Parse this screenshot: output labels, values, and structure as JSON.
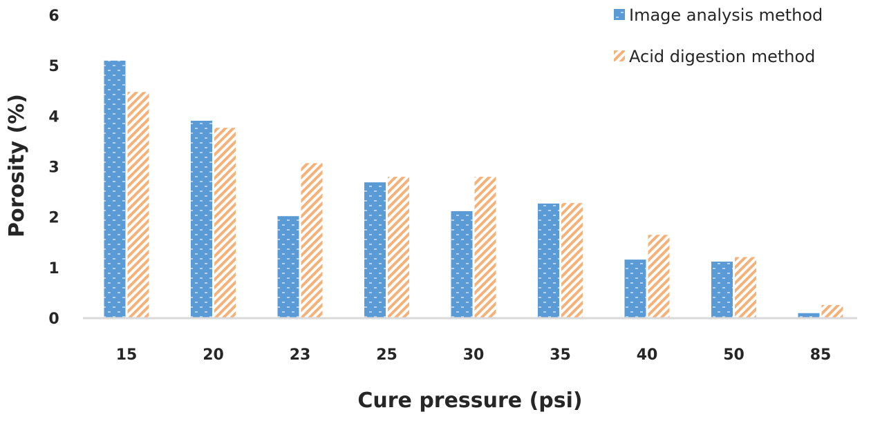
{
  "chart_data": {
    "type": "bar",
    "title": "",
    "xlabel": "Cure pressure (psi)",
    "ylabel": "Porosity (%)",
    "categories": [
      "15",
      "20",
      "23",
      "25",
      "30",
      "35",
      "40",
      "50",
      "85"
    ],
    "ylim": [
      0,
      6
    ],
    "yticks": [
      "0",
      "1",
      "2",
      "3",
      "4",
      "5",
      "6"
    ],
    "grid": false,
    "legend_position": "top-right",
    "series": [
      {
        "name": "Image analysis method",
        "color": "#5B9BD5",
        "pattern": "dotted",
        "values": [
          5.1,
          3.91,
          2.02,
          2.69,
          2.12,
          2.27,
          1.16,
          1.12,
          0.1
        ]
      },
      {
        "name": "Acid digestion method",
        "color": "#F4A460",
        "pattern": "diagonal-hatch",
        "values": [
          4.48,
          3.77,
          3.07,
          2.8,
          2.8,
          2.28,
          1.65,
          1.21,
          0.26
        ]
      }
    ]
  }
}
